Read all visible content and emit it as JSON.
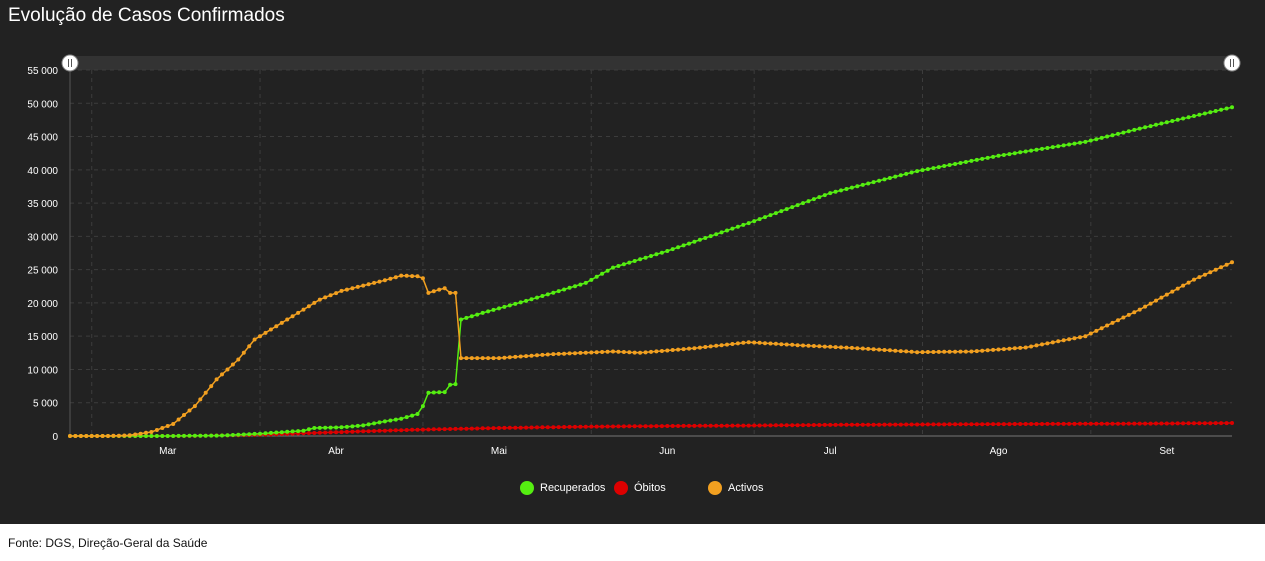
{
  "title": "Evolução de Casos Confirmados",
  "source": "Fonte: DGS, Direção-Geral da Saúde",
  "colors": {
    "recuperados": "#55ee11",
    "obitos": "#dd0000",
    "activos": "#f2a020",
    "background": "#222222",
    "grid": "#3c3c3c"
  },
  "chart_data": {
    "type": "line",
    "title": "Evolução de Casos Confirmados",
    "xlabel": "",
    "ylabel": "",
    "ylim": [
      0,
      55000
    ],
    "yticks": [
      "0",
      "5 000",
      "10 000",
      "15 000",
      "20 000",
      "25 000",
      "30 000",
      "35 000",
      "40 000",
      "45 000",
      "50 000",
      "55 000"
    ],
    "xticks": [
      "Mar",
      "Abr",
      "Mai",
      "Jun",
      "Jul",
      "Ago",
      "Set"
    ],
    "grid": true,
    "legend_position": "bottom",
    "x_start": "2020-02-26",
    "x_end": "2020-09-27",
    "series": [
      {
        "name": "Recuperados",
        "color": "#55ee11",
        "points": [
          [
            "2020-02-26",
            0
          ],
          [
            "2020-03-15",
            0
          ],
          [
            "2020-03-25",
            70
          ],
          [
            "2020-04-01",
            350
          ],
          [
            "2020-04-09",
            800
          ],
          [
            "2020-04-11",
            1200
          ],
          [
            "2020-04-16",
            1300
          ],
          [
            "2020-04-20",
            1600
          ],
          [
            "2020-04-24",
            2200
          ],
          [
            "2020-04-27",
            2600
          ],
          [
            "2020-04-30",
            3300
          ],
          [
            "2020-05-01",
            4500
          ],
          [
            "2020-05-02",
            6500
          ],
          [
            "2020-05-05",
            6600
          ],
          [
            "2020-05-06",
            7700
          ],
          [
            "2020-05-07",
            7800
          ],
          [
            "2020-05-08",
            17500
          ],
          [
            "2020-05-12",
            18500
          ],
          [
            "2020-05-20",
            20300
          ],
          [
            "2020-05-31",
            23000
          ],
          [
            "2020-06-05",
            25300
          ],
          [
            "2020-06-15",
            27800
          ],
          [
            "2020-06-30",
            32000
          ],
          [
            "2020-07-15",
            36500
          ],
          [
            "2020-07-31",
            39800
          ],
          [
            "2020-08-15",
            42100
          ],
          [
            "2020-08-31",
            44200
          ],
          [
            "2020-09-10",
            46200
          ],
          [
            "2020-09-27",
            49400
          ]
        ]
      },
      {
        "name": "Óbitos",
        "color": "#dd0000",
        "points": [
          [
            "2020-02-26",
            0
          ],
          [
            "2020-03-16",
            0
          ],
          [
            "2020-03-20",
            20
          ],
          [
            "2020-03-31",
            160
          ],
          [
            "2020-04-10",
            430
          ],
          [
            "2020-04-20",
            700
          ],
          [
            "2020-04-30",
            950
          ],
          [
            "2020-05-15",
            1200
          ],
          [
            "2020-05-31",
            1400
          ],
          [
            "2020-06-15",
            1500
          ],
          [
            "2020-06-30",
            1570
          ],
          [
            "2020-07-15",
            1670
          ],
          [
            "2020-07-31",
            1730
          ],
          [
            "2020-08-15",
            1790
          ],
          [
            "2020-08-31",
            1830
          ],
          [
            "2020-09-15",
            1880
          ],
          [
            "2020-09-27",
            1950
          ]
        ]
      },
      {
        "name": "Activos",
        "color": "#f2a020",
        "points": [
          [
            "2020-02-26",
            0
          ],
          [
            "2020-03-04",
            0
          ],
          [
            "2020-03-08",
            100
          ],
          [
            "2020-03-12",
            600
          ],
          [
            "2020-03-16",
            1800
          ],
          [
            "2020-03-20",
            4500
          ],
          [
            "2020-03-24",
            8500
          ],
          [
            "2020-03-28",
            11500
          ],
          [
            "2020-03-31",
            14500
          ],
          [
            "2020-04-04",
            16500
          ],
          [
            "2020-04-08",
            18500
          ],
          [
            "2020-04-12",
            20500
          ],
          [
            "2020-04-16",
            21800
          ],
          [
            "2020-04-20",
            22600
          ],
          [
            "2020-04-24",
            23400
          ],
          [
            "2020-04-27",
            24100
          ],
          [
            "2020-04-30",
            24000
          ],
          [
            "2020-05-01",
            23700
          ],
          [
            "2020-05-02",
            21500
          ],
          [
            "2020-05-04",
            22000
          ],
          [
            "2020-05-05",
            22200
          ],
          [
            "2020-05-06",
            21500
          ],
          [
            "2020-05-07",
            21500
          ],
          [
            "2020-05-08",
            11700
          ],
          [
            "2020-05-15",
            11700
          ],
          [
            "2020-05-25",
            12300
          ],
          [
            "2020-06-05",
            12700
          ],
          [
            "2020-06-10",
            12500
          ],
          [
            "2020-06-20",
            13200
          ],
          [
            "2020-06-30",
            14100
          ],
          [
            "2020-07-10",
            13600
          ],
          [
            "2020-07-20",
            13200
          ],
          [
            "2020-07-31",
            12600
          ],
          [
            "2020-08-10",
            12700
          ],
          [
            "2020-08-20",
            13300
          ],
          [
            "2020-08-31",
            15000
          ],
          [
            "2020-09-10",
            19000
          ],
          [
            "2020-09-20",
            23500
          ],
          [
            "2020-09-27",
            26100
          ]
        ]
      }
    ]
  }
}
